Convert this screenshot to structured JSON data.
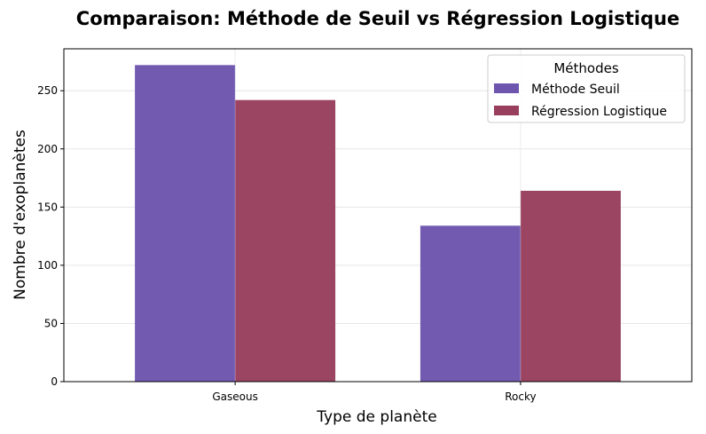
{
  "chart_data": {
    "type": "bar",
    "title": "Comparaison: Méthode de Seuil vs Régression Logistique",
    "xlabel": "Type de planète",
    "ylabel": "Nombre d'exoplanètes",
    "categories": [
      "Gaseous",
      "Rocky"
    ],
    "series": [
      {
        "name": "Méthode Seuil",
        "values": [
          272,
          134
        ],
        "color": "#6e55ae"
      },
      {
        "name": "Régression Logistique",
        "values": [
          242,
          164
        ],
        "color": "#983f5d"
      }
    ],
    "ylim": [
      0,
      286
    ],
    "yticks": [
      0,
      50,
      100,
      150,
      200,
      250
    ],
    "grid": true,
    "legend": {
      "title": "Méthodes",
      "placement": "top-right"
    }
  }
}
